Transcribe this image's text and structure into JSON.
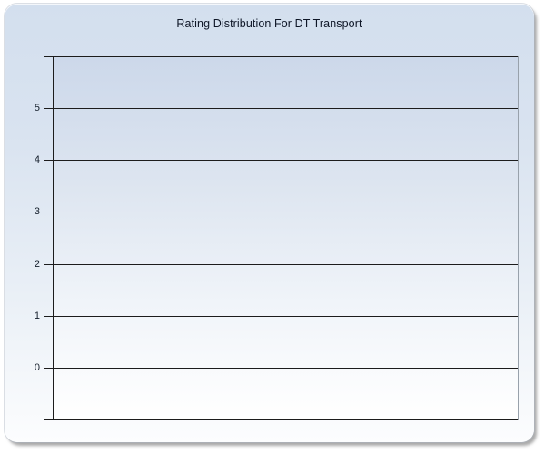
{
  "chart_data": {
    "type": "bar",
    "title": "Rating Distribution For DT Transport",
    "categories": [],
    "values": [],
    "series": [],
    "xlabel": "",
    "ylabel": "",
    "ylim": [
      -1,
      6
    ],
    "ytick_interval": 1,
    "ytick_labels": [
      "5",
      "4",
      "3",
      "2",
      "1",
      "0"
    ],
    "grid": "horizontal-only",
    "legend": "none",
    "note_empty": true
  },
  "colors": {
    "page_background": "#ffffff",
    "frame_gradient_top": "#d3dfee",
    "frame_gradient_bottom": "#fcfdfe",
    "plot_gradient_top": "#ccd8ea",
    "plot_gradient_bottom": "#ffffff",
    "gridline": "#1c1c1c",
    "axis_line": "#1c1c1c",
    "plot_right_border": "#98a1ab",
    "title_text": "#0e1626",
    "tick_label_text": "#141e2b",
    "frame_shadow": "#7d7d7d"
  }
}
